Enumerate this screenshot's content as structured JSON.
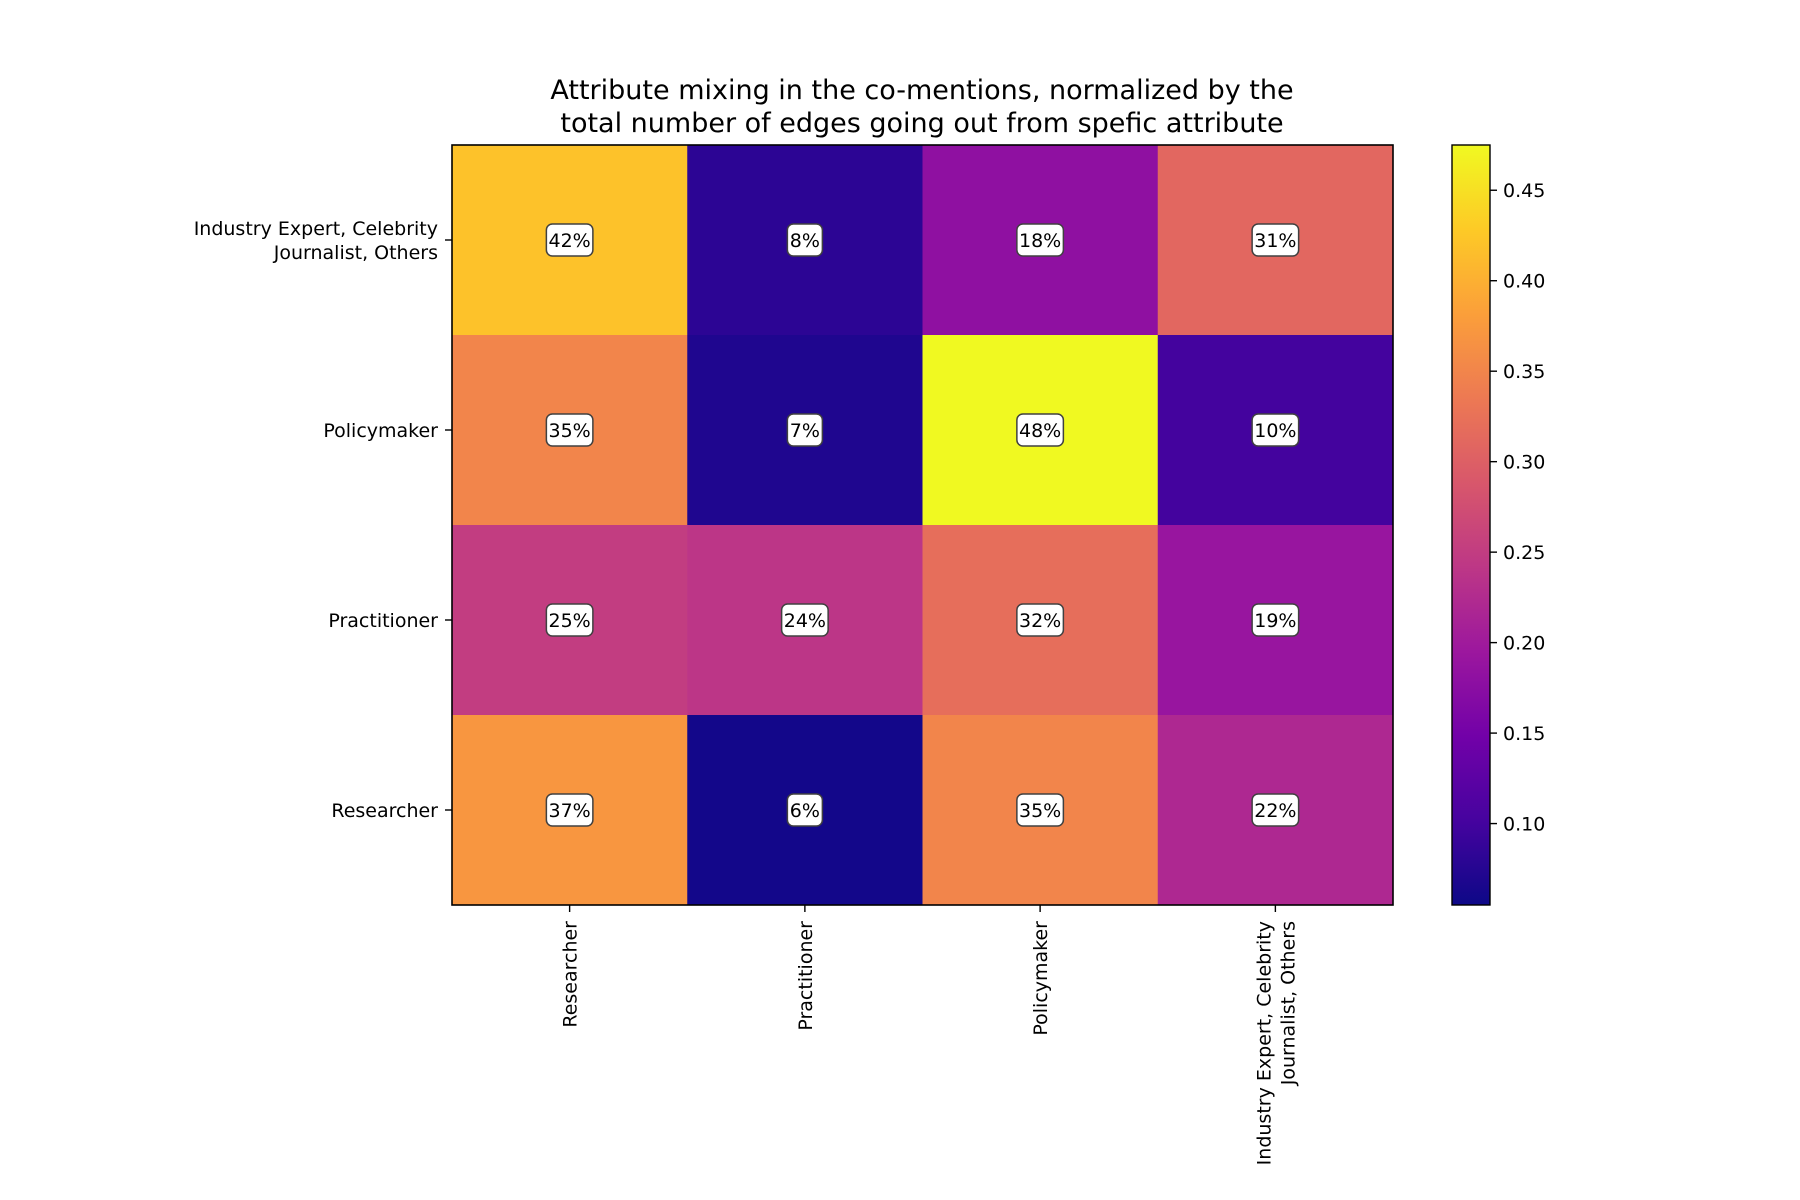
{
  "chart_data": {
    "type": "heatmap",
    "title_lines": [
      "Attribute mixing in the co-mentions, normalized by the",
      "total number of edges going out from spefic attribute"
    ],
    "x_categories": [
      [
        "Researcher"
      ],
      [
        "Practitioner"
      ],
      [
        "Policymaker"
      ],
      [
        "Industry Expert, Celebrity",
        "Journalist, Others"
      ]
    ],
    "y_categories": [
      [
        "Industry Expert, Celebrity",
        "Journalist, Others"
      ],
      [
        "Policymaker"
      ],
      [
        "Practitioner"
      ],
      [
        "Researcher"
      ]
    ],
    "values": [
      [
        0.42,
        0.08,
        0.18,
        0.31
      ],
      [
        0.35,
        0.07,
        0.48,
        0.1
      ],
      [
        0.25,
        0.24,
        0.32,
        0.19
      ],
      [
        0.37,
        0.06,
        0.35,
        0.22
      ]
    ],
    "cell_labels": [
      [
        "42%",
        "8%",
        "18%",
        "31%"
      ],
      [
        "35%",
        "7%",
        "48%",
        "10%"
      ],
      [
        "25%",
        "24%",
        "32%",
        "19%"
      ],
      [
        "37%",
        "6%",
        "35%",
        "22%"
      ]
    ],
    "colormap": "plasma",
    "colorbar": {
      "range": [
        0.055,
        0.475
      ],
      "ticks": [
        0.1,
        0.15,
        0.2,
        0.25,
        0.3,
        0.35,
        0.4,
        0.45
      ],
      "tick_labels": [
        "0.10",
        "0.15",
        "0.20",
        "0.25",
        "0.30",
        "0.35",
        "0.40",
        "0.45"
      ]
    },
    "colors": {
      "plasma_stops": [
        "#0d0887",
        "#46039f",
        "#7201a8",
        "#9c179e",
        "#bd3786",
        "#d8576b",
        "#ed7953",
        "#fb9f3a",
        "#fdca26",
        "#f0f921"
      ]
    }
  }
}
